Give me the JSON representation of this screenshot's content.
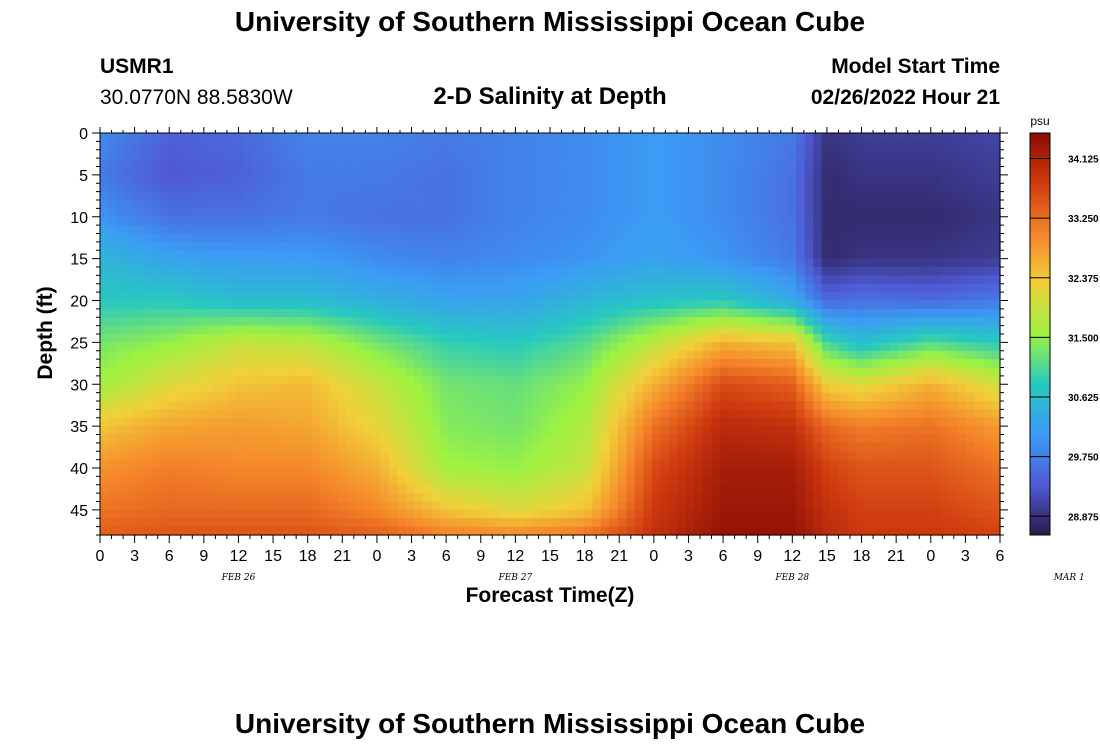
{
  "header": {
    "title": "University of Southern Mississippi Ocean Cube",
    "station_id": "USMR1",
    "station_coords": "30.0770N  88.5830W",
    "plot_title": "2-D Salinity at Depth",
    "model_start_label": "Model Start Time",
    "model_start_value": "02/26/2022 Hour 21"
  },
  "footer": {
    "title": "University of Southern Mississippi Ocean Cube"
  },
  "colorbar": {
    "unit": "psu",
    "colors": [
      "#2a1a4a",
      "#4f5bd5",
      "#3b9bf5",
      "#27c9c0",
      "#9df242",
      "#f1d03a",
      "#f5852a",
      "#cf3a0f",
      "#8a0c05"
    ],
    "ticks": [
      "28.875",
      "29.750",
      "30.625",
      "31.500",
      "32.375",
      "33.250",
      "34.125"
    ]
  },
  "chart_data": {
    "type": "heatmap",
    "title": "2-D Salinity at Depth",
    "xlabel": "Forecast Time(Z)",
    "ylabel": "Depth (ft)",
    "x_tick_labels": [
      "0",
      "3",
      "6",
      "9",
      "12",
      "15",
      "18",
      "21",
      "0",
      "3",
      "6",
      "9",
      "12",
      "15",
      "18",
      "21",
      "0",
      "3",
      "6",
      "9",
      "12",
      "15",
      "18",
      "21",
      "0",
      "3",
      "6"
    ],
    "day_labels": [
      "FEB 26",
      "FEB 27",
      "FEB 28",
      "MAR 1"
    ],
    "y_tick_labels": [
      "0",
      "5",
      "10",
      "15",
      "20",
      "25",
      "30",
      "35",
      "40",
      "45"
    ],
    "xlim": [
      0,
      78
    ],
    "ylim": [
      0,
      48
    ],
    "y_inverted": true,
    "value_range": [
      28.6,
      34.5
    ],
    "x_hours": [
      0,
      6,
      12,
      18,
      24,
      30,
      36,
      42,
      48,
      54,
      60,
      63,
      66,
      72,
      78
    ],
    "depth_ft": [
      0,
      5,
      10,
      15,
      20,
      25,
      30,
      35,
      40,
      45,
      48
    ],
    "salinity_psu": [
      [
        29.9,
        29.4,
        29.5,
        29.8,
        29.8,
        29.7,
        29.8,
        29.9,
        30.1,
        29.9,
        29.7,
        28.9,
        29.0,
        29.0,
        29.1
      ],
      [
        29.7,
        29.3,
        29.4,
        29.7,
        29.7,
        29.6,
        29.8,
        29.9,
        30.1,
        29.9,
        29.6,
        28.8,
        28.9,
        28.9,
        29.0
      ],
      [
        30.0,
        29.6,
        29.6,
        29.7,
        29.6,
        29.6,
        29.8,
        29.9,
        30.1,
        29.9,
        29.6,
        28.8,
        28.8,
        28.8,
        28.9
      ],
      [
        30.5,
        30.2,
        30.1,
        30.1,
        29.9,
        29.8,
        29.9,
        30.0,
        30.2,
        30.0,
        29.7,
        28.8,
        28.9,
        28.9,
        29.0
      ],
      [
        30.8,
        30.8,
        30.6,
        30.6,
        30.4,
        30.2,
        30.2,
        30.5,
        30.7,
        30.8,
        30.3,
        29.5,
        29.6,
        29.5,
        29.7
      ],
      [
        31.3,
        31.5,
        31.9,
        31.8,
        31.3,
        30.9,
        30.8,
        31.1,
        31.8,
        32.6,
        32.4,
        31.0,
        30.6,
        31.1,
        30.8
      ],
      [
        31.6,
        32.1,
        32.4,
        32.5,
        31.9,
        31.3,
        31.2,
        31.5,
        32.6,
        33.6,
        33.4,
        32.3,
        32.1,
        32.6,
        32.0
      ],
      [
        32.4,
        32.7,
        32.8,
        32.7,
        32.2,
        31.4,
        31.3,
        31.7,
        33.2,
        34.0,
        33.9,
        33.3,
        33.1,
        33.2,
        32.8
      ],
      [
        32.9,
        33.1,
        33.0,
        33.0,
        32.6,
        31.6,
        31.5,
        31.9,
        33.6,
        34.2,
        34.2,
        33.7,
        33.5,
        33.5,
        33.2
      ],
      [
        33.2,
        33.3,
        33.3,
        33.3,
        33.0,
        32.4,
        32.1,
        32.4,
        33.8,
        34.3,
        34.3,
        33.9,
        33.7,
        33.7,
        33.5
      ],
      [
        33.4,
        33.5,
        33.5,
        33.5,
        33.4,
        33.1,
        33.0,
        33.2,
        33.9,
        34.4,
        34.4,
        34.0,
        33.8,
        33.8,
        33.7
      ]
    ]
  }
}
